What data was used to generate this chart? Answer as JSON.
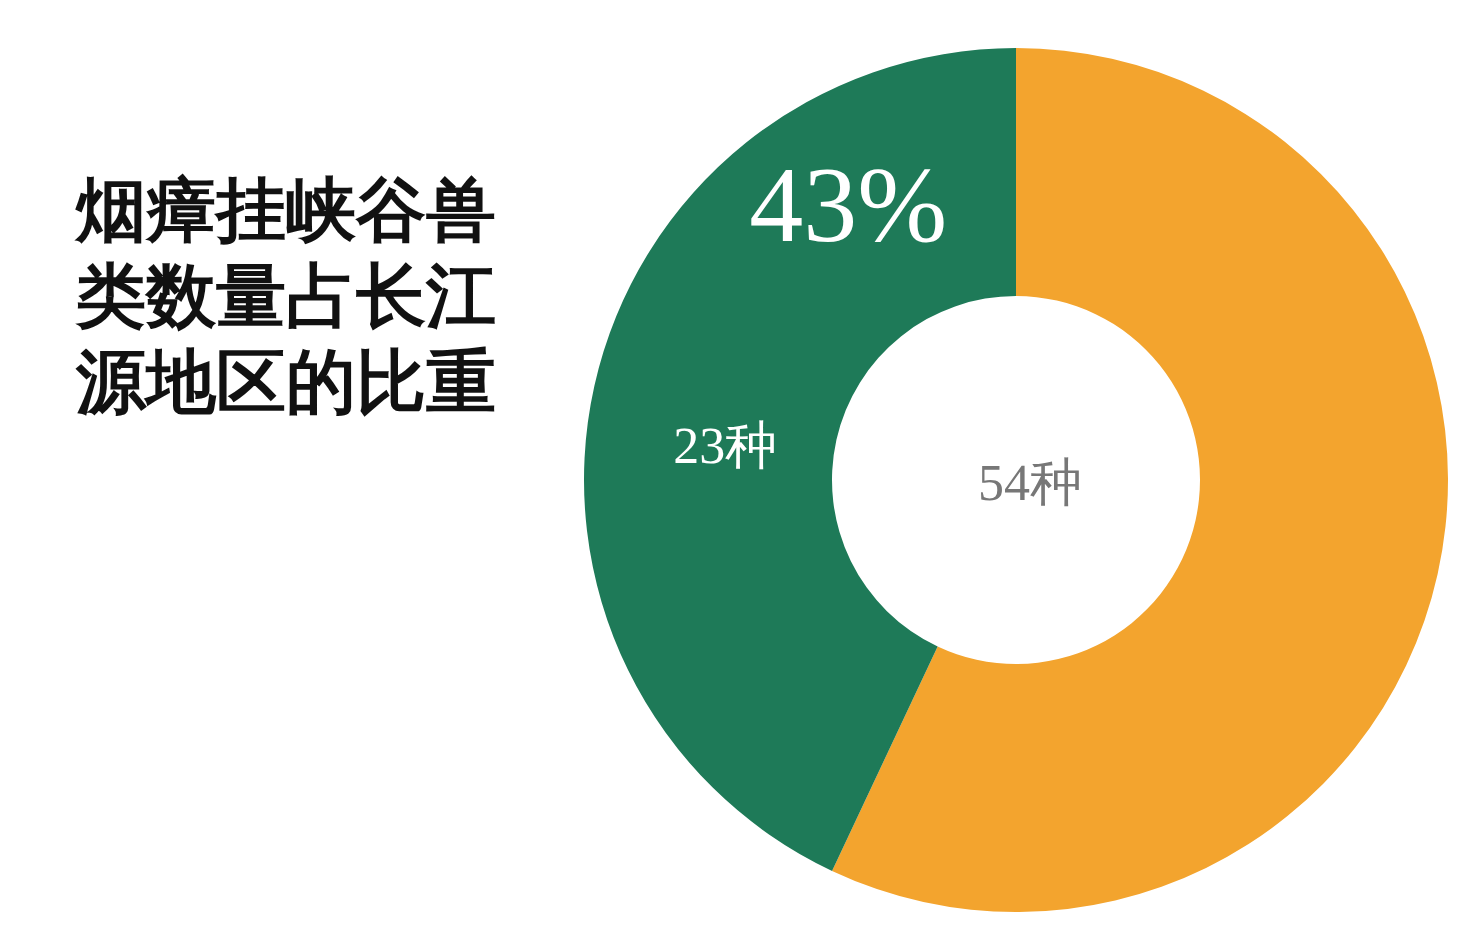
{
  "chart_data": {
    "type": "donut",
    "title": "烟瘴挂峡谷兽类数量占长江源地区的比重",
    "categories": [
      null,
      null
    ],
    "values": [
      57,
      43
    ],
    "colors": [
      "#f3a42e",
      "#1e7a58"
    ],
    "value_labels": [
      null,
      "43%"
    ],
    "annotations": [
      "23种",
      "54种"
    ]
  }
}
